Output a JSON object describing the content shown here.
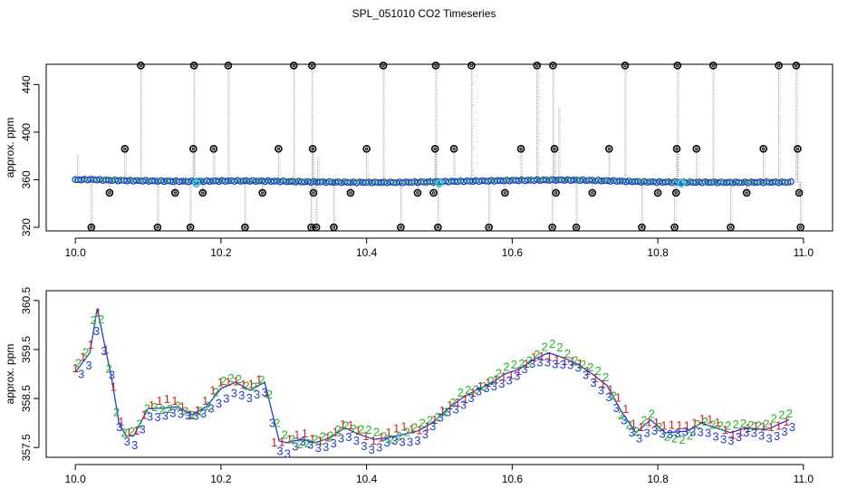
{
  "title": "SPL_051010  CO2 Timeseries",
  "colors": {
    "spike_line": "#9a9a9a",
    "outlier_marker": "#000000",
    "main_series": "#1f3fd0",
    "green_series": "#22b422",
    "cyan_marker": "#33c8e8",
    "ch1": "#d42020",
    "ch2": "#22b422",
    "ch3": "#1f3fd0",
    "trend_line": "#1f3fd0"
  },
  "chart_data": [
    {
      "type": "scatter",
      "title": "",
      "xlabel": "",
      "ylabel": "approx. ppm",
      "xlim": [
        9.96,
        11.04
      ],
      "ylim": [
        317,
        457
      ],
      "x_ticks": [
        "10.0",
        "10.2",
        "10.4",
        "10.6",
        "10.8",
        "11.0"
      ],
      "y_ticks": [
        "320",
        "360",
        "400",
        "440"
      ],
      "baseline": {
        "points": [
          [
            10.0,
            359.9
          ],
          [
            10.02,
            360.3
          ],
          [
            10.04,
            359.7
          ],
          [
            10.08,
            359.2
          ],
          [
            10.12,
            358.9
          ],
          [
            10.16,
            358.6
          ],
          [
            10.2,
            359.0
          ],
          [
            10.24,
            359.0
          ],
          [
            10.28,
            358.7
          ],
          [
            10.32,
            358.2
          ],
          [
            10.36,
            358.0
          ],
          [
            10.4,
            357.8
          ],
          [
            10.44,
            357.8
          ],
          [
            10.48,
            358.1
          ],
          [
            10.52,
            358.6
          ],
          [
            10.56,
            359.0
          ],
          [
            10.6,
            359.4
          ],
          [
            10.64,
            359.7
          ],
          [
            10.66,
            359.8
          ],
          [
            10.7,
            359.6
          ],
          [
            10.74,
            359.0
          ],
          [
            10.78,
            358.2
          ],
          [
            10.82,
            358.0
          ],
          [
            10.86,
            357.9
          ],
          [
            10.9,
            357.8
          ],
          [
            10.94,
            357.9
          ],
          [
            10.98,
            358.0
          ]
        ]
      },
      "spikes": [
        {
          "x": 10.003,
          "y": 381,
          "marked": false
        },
        {
          "x": 10.022,
          "y": 320,
          "marked": true
        },
        {
          "x": 10.047,
          "y": 349,
          "marked": true
        },
        {
          "x": 10.068,
          "y": 386,
          "marked": true
        },
        {
          "x": 10.09,
          "y": 456,
          "marked": true
        },
        {
          "x": 10.113,
          "y": 320,
          "marked": true
        },
        {
          "x": 10.137,
          "y": 349,
          "marked": true
        },
        {
          "x": 10.158,
          "y": 320,
          "marked": true
        },
        {
          "x": 10.162,
          "y": 386,
          "marked": true
        },
        {
          "x": 10.163,
          "y": 456,
          "marked": true
        },
        {
          "x": 10.175,
          "y": 349,
          "marked": true
        },
        {
          "x": 10.19,
          "y": 386,
          "marked": true
        },
        {
          "x": 10.21,
          "y": 456,
          "marked": true
        },
        {
          "x": 10.233,
          "y": 320,
          "marked": true
        },
        {
          "x": 10.257,
          "y": 349,
          "marked": true
        },
        {
          "x": 10.279,
          "y": 386,
          "marked": true
        },
        {
          "x": 10.3,
          "y": 456,
          "marked": true
        },
        {
          "x": 10.324,
          "y": 320,
          "marked": true
        },
        {
          "x": 10.325,
          "y": 456,
          "marked": true
        },
        {
          "x": 10.326,
          "y": 386,
          "marked": true
        },
        {
          "x": 10.327,
          "y": 349,
          "marked": true
        },
        {
          "x": 10.331,
          "y": 320,
          "marked": true
        },
        {
          "x": 10.333,
          "y": 380,
          "marked": false
        },
        {
          "x": 10.355,
          "y": 320,
          "marked": true
        },
        {
          "x": 10.378,
          "y": 349,
          "marked": true
        },
        {
          "x": 10.4,
          "y": 386,
          "marked": true
        },
        {
          "x": 10.423,
          "y": 456,
          "marked": true
        },
        {
          "x": 10.447,
          "y": 320,
          "marked": true
        },
        {
          "x": 10.47,
          "y": 349,
          "marked": true
        },
        {
          "x": 10.492,
          "y": 349,
          "marked": true
        },
        {
          "x": 10.494,
          "y": 386,
          "marked": true
        },
        {
          "x": 10.495,
          "y": 456,
          "marked": true
        },
        {
          "x": 10.498,
          "y": 320,
          "marked": true
        },
        {
          "x": 10.52,
          "y": 386,
          "marked": true
        },
        {
          "x": 10.544,
          "y": 456,
          "marked": true
        },
        {
          "x": 10.568,
          "y": 320,
          "marked": true
        },
        {
          "x": 10.59,
          "y": 349,
          "marked": true
        },
        {
          "x": 10.612,
          "y": 386,
          "marked": true
        },
        {
          "x": 10.634,
          "y": 456,
          "marked": true
        },
        {
          "x": 10.655,
          "y": 320,
          "marked": true
        },
        {
          "x": 10.656,
          "y": 456,
          "marked": true
        },
        {
          "x": 10.658,
          "y": 386,
          "marked": true
        },
        {
          "x": 10.66,
          "y": 349,
          "marked": true
        },
        {
          "x": 10.664,
          "y": 420,
          "marked": false
        },
        {
          "x": 10.688,
          "y": 320,
          "marked": true
        },
        {
          "x": 10.71,
          "y": 349,
          "marked": true
        },
        {
          "x": 10.733,
          "y": 386,
          "marked": true
        },
        {
          "x": 10.755,
          "y": 456,
          "marked": true
        },
        {
          "x": 10.778,
          "y": 320,
          "marked": true
        },
        {
          "x": 10.8,
          "y": 349,
          "marked": true
        },
        {
          "x": 10.823,
          "y": 320,
          "marked": true
        },
        {
          "x": 10.825,
          "y": 349,
          "marked": true
        },
        {
          "x": 10.826,
          "y": 386,
          "marked": true
        },
        {
          "x": 10.827,
          "y": 456,
          "marked": true
        },
        {
          "x": 10.853,
          "y": 386,
          "marked": true
        },
        {
          "x": 10.876,
          "y": 456,
          "marked": true
        },
        {
          "x": 10.9,
          "y": 320,
          "marked": true
        },
        {
          "x": 10.922,
          "y": 349,
          "marked": true
        },
        {
          "x": 10.945,
          "y": 386,
          "marked": true
        },
        {
          "x": 10.966,
          "y": 456,
          "marked": true
        },
        {
          "x": 10.99,
          "y": 456,
          "marked": true
        },
        {
          "x": 10.992,
          "y": 386,
          "marked": true
        },
        {
          "x": 10.994,
          "y": 349,
          "marked": true
        },
        {
          "x": 10.996,
          "y": 320,
          "marked": true
        }
      ],
      "cyan_points": [
        [
          10.166,
          357
        ],
        [
          10.5,
          357
        ],
        [
          10.832,
          357
        ]
      ]
    },
    {
      "type": "scatter",
      "title": "",
      "xlabel": "",
      "ylabel": "approx. ppm",
      "xlim": [
        9.96,
        11.04
      ],
      "ylim": [
        357.3,
        360.7
      ],
      "x_ticks": [
        "10.0",
        "10.2",
        "10.4",
        "10.6",
        "10.8",
        "11.0"
      ],
      "y_ticks": [
        "357.5",
        "358.5",
        "359.5",
        "360.5"
      ],
      "channel_labels": [
        "1",
        "2",
        "3"
      ],
      "series": [
        {
          "name": "1",
          "values": [
            [
              10.0,
              359.1
            ],
            [
              10.02,
              359.5
            ],
            [
              10.03,
              360.4
            ],
            [
              10.05,
              359.0
            ],
            [
              10.06,
              358.1
            ],
            [
              10.07,
              357.8
            ],
            [
              10.08,
              357.7
            ],
            [
              10.1,
              358.4
            ],
            [
              10.12,
              358.5
            ],
            [
              10.14,
              358.4
            ],
            [
              10.16,
              358.2
            ],
            [
              10.18,
              358.5
            ],
            [
              10.2,
              358.8
            ],
            [
              10.22,
              358.9
            ],
            [
              10.24,
              358.8
            ],
            [
              10.26,
              358.9
            ],
            [
              10.27,
              357.6
            ],
            [
              10.29,
              357.7
            ],
            [
              10.31,
              357.8
            ],
            [
              10.33,
              357.6
            ],
            [
              10.35,
              357.8
            ],
            [
              10.37,
              358.0
            ],
            [
              10.39,
              357.8
            ],
            [
              10.41,
              357.7
            ],
            [
              10.43,
              357.8
            ],
            [
              10.45,
              357.9
            ],
            [
              10.47,
              357.9
            ],
            [
              10.49,
              358.0
            ],
            [
              10.51,
              358.3
            ],
            [
              10.53,
              358.5
            ],
            [
              10.55,
              358.7
            ],
            [
              10.57,
              358.8
            ],
            [
              10.59,
              359.0
            ],
            [
              10.61,
              359.1
            ],
            [
              10.63,
              359.3
            ],
            [
              10.65,
              359.4
            ],
            [
              10.67,
              359.3
            ],
            [
              10.69,
              359.2
            ],
            [
              10.71,
              359.0
            ],
            [
              10.73,
              358.8
            ],
            [
              10.75,
              358.4
            ],
            [
              10.77,
              357.9
            ],
            [
              10.79,
              358.1
            ],
            [
              10.81,
              357.9
            ],
            [
              10.84,
              358.0
            ],
            [
              10.86,
              358.1
            ],
            [
              10.88,
              358.0
            ],
            [
              10.9,
              357.8
            ],
            [
              10.92,
              357.9
            ],
            [
              10.95,
              357.9
            ],
            [
              10.98,
              358.1
            ]
          ]
        },
        {
          "name": "2",
          "values": [
            [
              10.0,
              359.2
            ],
            [
              10.02,
              359.6
            ],
            [
              10.03,
              360.6
            ],
            [
              10.05,
              358.7
            ],
            [
              10.06,
              358.0
            ],
            [
              10.07,
              357.8
            ],
            [
              10.09,
              358.0
            ],
            [
              10.1,
              358.3
            ],
            [
              10.12,
              358.3
            ],
            [
              10.14,
              358.4
            ],
            [
              10.16,
              358.1
            ],
            [
              10.18,
              358.3
            ],
            [
              10.2,
              358.9
            ],
            [
              10.22,
              358.9
            ],
            [
              10.24,
              358.7
            ],
            [
              10.26,
              359.0
            ],
            [
              10.28,
              357.8
            ],
            [
              10.29,
              357.7
            ],
            [
              10.31,
              357.6
            ],
            [
              10.33,
              357.7
            ],
            [
              10.35,
              357.7
            ],
            [
              10.37,
              358.0
            ],
            [
              10.39,
              357.9
            ],
            [
              10.41,
              357.8
            ],
            [
              10.43,
              357.7
            ],
            [
              10.45,
              357.8
            ],
            [
              10.47,
              357.9
            ],
            [
              10.49,
              358.1
            ],
            [
              10.51,
              358.3
            ],
            [
              10.53,
              358.6
            ],
            [
              10.55,
              358.7
            ],
            [
              10.57,
              358.9
            ],
            [
              10.59,
              359.1
            ],
            [
              10.61,
              359.2
            ],
            [
              10.63,
              359.4
            ],
            [
              10.65,
              359.6
            ],
            [
              10.67,
              359.5
            ],
            [
              10.69,
              359.3
            ],
            [
              10.71,
              359.1
            ],
            [
              10.73,
              358.9
            ],
            [
              10.75,
              358.2
            ],
            [
              10.77,
              357.8
            ],
            [
              10.79,
              358.2
            ],
            [
              10.81,
              357.8
            ],
            [
              10.84,
              357.6
            ],
            [
              10.86,
              358.1
            ],
            [
              10.88,
              358.0
            ],
            [
              10.9,
              357.9
            ],
            [
              10.92,
              358.0
            ],
            [
              10.95,
              358.0
            ],
            [
              10.98,
              358.2
            ]
          ]
        },
        {
          "name": "3",
          "values": [
            [
              10.0,
              358.8
            ],
            [
              10.02,
              359.2
            ],
            [
              10.03,
              360.0
            ],
            [
              10.05,
              359.0
            ],
            [
              10.06,
              357.9
            ],
            [
              10.07,
              357.6
            ],
            [
              10.08,
              357.5
            ],
            [
              10.1,
              358.2
            ],
            [
              10.12,
              358.1
            ],
            [
              10.14,
              358.2
            ],
            [
              10.16,
              358.2
            ],
            [
              10.18,
              358.2
            ],
            [
              10.2,
              358.4
            ],
            [
              10.22,
              358.7
            ],
            [
              10.24,
              358.5
            ],
            [
              10.26,
              358.6
            ],
            [
              10.28,
              357.5
            ],
            [
              10.29,
              357.4
            ],
            [
              10.31,
              357.6
            ],
            [
              10.33,
              357.5
            ],
            [
              10.35,
              357.6
            ],
            [
              10.37,
              357.7
            ],
            [
              10.39,
              357.6
            ],
            [
              10.41,
              357.5
            ],
            [
              10.43,
              357.6
            ],
            [
              10.45,
              357.6
            ],
            [
              10.47,
              357.7
            ],
            [
              10.49,
              357.9
            ],
            [
              10.51,
              358.2
            ],
            [
              10.53,
              358.4
            ],
            [
              10.55,
              358.6
            ],
            [
              10.57,
              358.7
            ],
            [
              10.59,
              358.9
            ],
            [
              10.61,
              359.0
            ],
            [
              10.63,
              359.2
            ],
            [
              10.65,
              359.3
            ],
            [
              10.67,
              359.2
            ],
            [
              10.69,
              359.1
            ],
            [
              10.71,
              358.9
            ],
            [
              10.73,
              358.6
            ],
            [
              10.75,
              358.1
            ],
            [
              10.77,
              357.7
            ],
            [
              10.79,
              357.9
            ],
            [
              10.81,
              357.7
            ],
            [
              10.84,
              357.9
            ],
            [
              10.86,
              357.8
            ],
            [
              10.88,
              357.7
            ],
            [
              10.9,
              357.7
            ],
            [
              10.92,
              357.8
            ],
            [
              10.95,
              357.7
            ],
            [
              10.98,
              357.9
            ]
          ]
        }
      ]
    }
  ]
}
